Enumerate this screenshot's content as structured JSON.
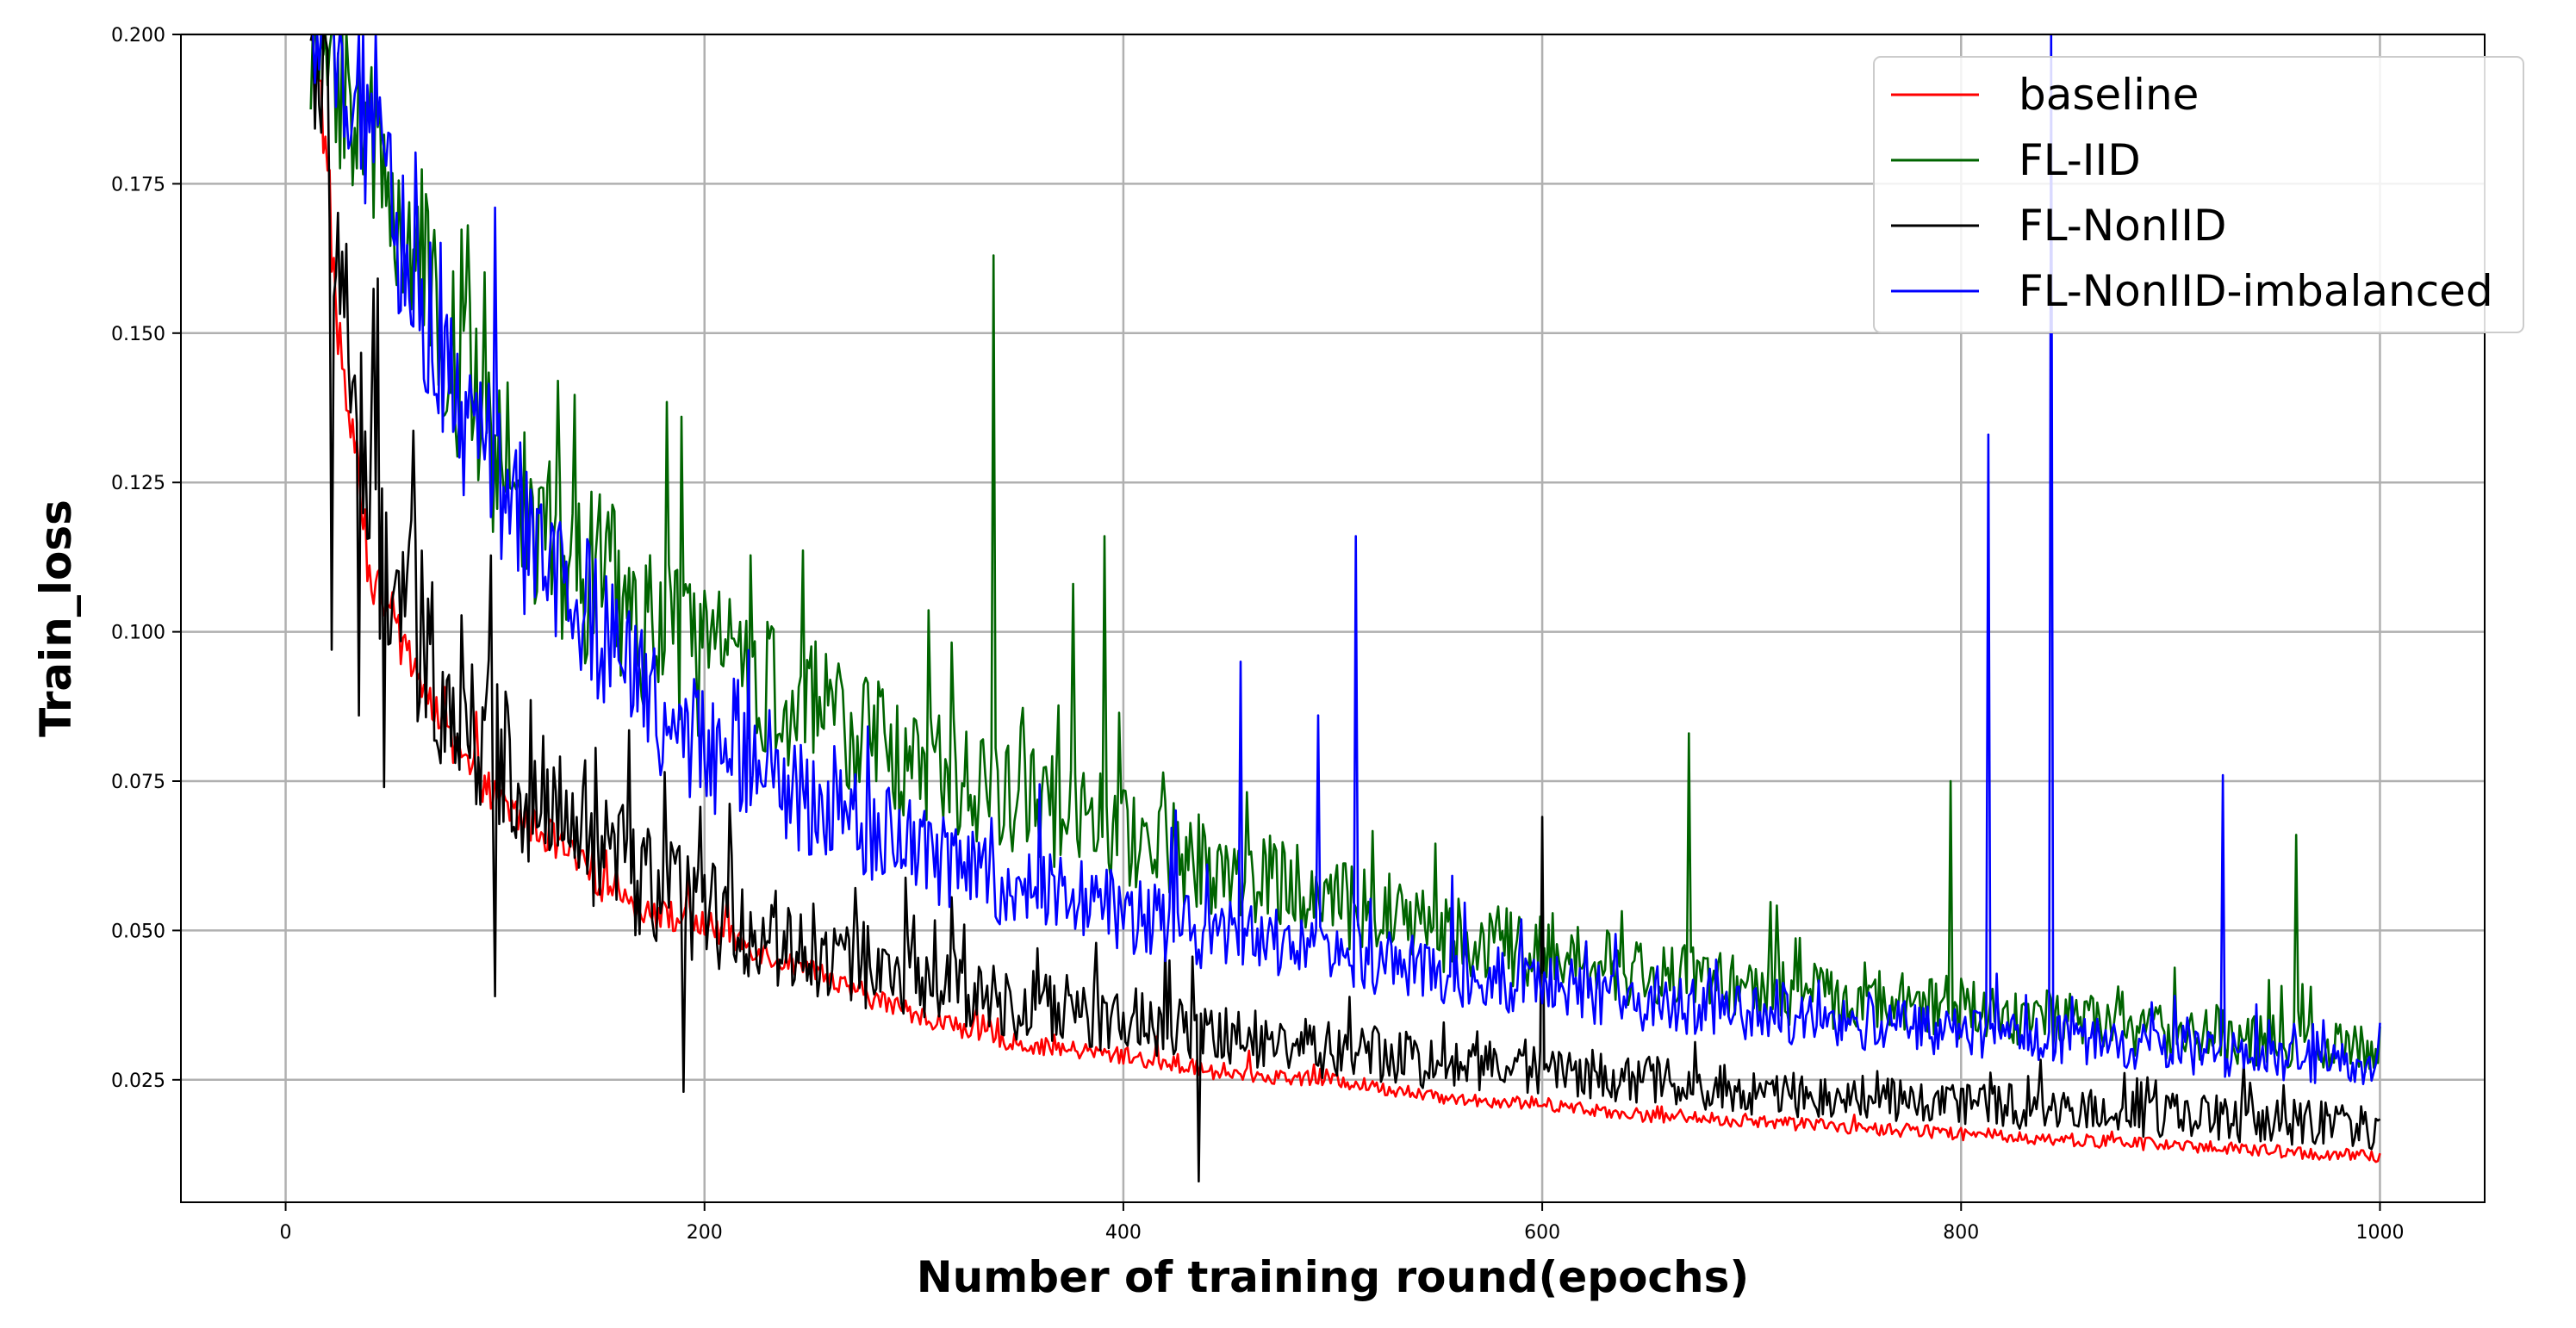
{
  "chart_data": {
    "type": "line",
    "title": "",
    "xlabel": "Number of training round(epochs)",
    "ylabel": "Train_loss",
    "xlim": [
      -50,
      1050
    ],
    "ylim": [
      0.0045,
      0.2
    ],
    "xticks": [
      0,
      200,
      400,
      600,
      800,
      1000
    ],
    "xtick_labels": [
      "0",
      "200",
      "400",
      "600",
      "800",
      "1000"
    ],
    "yticks": [
      0.025,
      0.05,
      0.075,
      0.1,
      0.125,
      0.15,
      0.175,
      0.2
    ],
    "ytick_labels": [
      "0.025",
      "0.050",
      "0.075",
      "0.100",
      "0.125",
      "0.150",
      "0.175",
      "0.200"
    ],
    "grid": true,
    "legend_position": "top-right",
    "x": [
      0,
      1000
    ],
    "series": [
      {
        "name": "baseline",
        "color": "#ff0000",
        "trend": [
          [
            15,
            0.2
          ],
          [
            20,
            0.175
          ],
          [
            25,
            0.15
          ],
          [
            40,
            0.11
          ],
          [
            60,
            0.095
          ],
          [
            80,
            0.08
          ],
          [
            100,
            0.072
          ],
          [
            125,
            0.066
          ],
          [
            150,
            0.058
          ],
          [
            175,
            0.053
          ],
          [
            200,
            0.051
          ],
          [
            250,
            0.043
          ],
          [
            300,
            0.036
          ],
          [
            350,
            0.031
          ],
          [
            400,
            0.029
          ],
          [
            450,
            0.026
          ],
          [
            500,
            0.025
          ],
          [
            550,
            0.022
          ],
          [
            600,
            0.021
          ],
          [
            650,
            0.019
          ],
          [
            700,
            0.018
          ],
          [
            800,
            0.016
          ],
          [
            900,
            0.014
          ],
          [
            1000,
            0.012
          ]
        ],
        "noise": 0.0025,
        "spikes": []
      },
      {
        "name": "FL-IID",
        "color": "#006400",
        "trend": [
          [
            15,
            0.2
          ],
          [
            30,
            0.19
          ],
          [
            50,
            0.175
          ],
          [
            75,
            0.15
          ],
          [
            100,
            0.13
          ],
          [
            125,
            0.115
          ],
          [
            150,
            0.108
          ],
          [
            175,
            0.1
          ],
          [
            200,
            0.095
          ],
          [
            250,
            0.087
          ],
          [
            300,
            0.078
          ],
          [
            350,
            0.072
          ],
          [
            400,
            0.066
          ],
          [
            450,
            0.06
          ],
          [
            500,
            0.055
          ],
          [
            550,
            0.05
          ],
          [
            600,
            0.046
          ],
          [
            650,
            0.043
          ],
          [
            700,
            0.04
          ],
          [
            800,
            0.037
          ],
          [
            900,
            0.033
          ],
          [
            1000,
            0.03
          ]
        ],
        "noise": 0.007,
        "spikes": [
          [
            189,
            0.136
          ],
          [
            338,
            0.163
          ],
          [
            376,
            0.108
          ],
          [
            391,
            0.116
          ],
          [
            670,
            0.083
          ],
          [
            795,
            0.075
          ],
          [
            960,
            0.066
          ]
        ]
      },
      {
        "name": "FL-NonIID",
        "color": "#000000",
        "trend": [
          [
            15,
            0.2
          ],
          [
            20,
            0.18
          ],
          [
            30,
            0.15
          ],
          [
            40,
            0.12
          ],
          [
            60,
            0.1
          ],
          [
            80,
            0.09
          ],
          [
            100,
            0.08
          ],
          [
            125,
            0.07
          ],
          [
            150,
            0.063
          ],
          [
            175,
            0.057
          ],
          [
            200,
            0.053
          ],
          [
            250,
            0.047
          ],
          [
            300,
            0.042
          ],
          [
            350,
            0.038
          ],
          [
            400,
            0.035
          ],
          [
            450,
            0.032
          ],
          [
            500,
            0.03
          ],
          [
            550,
            0.028
          ],
          [
            600,
            0.027
          ],
          [
            650,
            0.025
          ],
          [
            700,
            0.023
          ],
          [
            800,
            0.021
          ],
          [
            900,
            0.019
          ],
          [
            1000,
            0.017
          ]
        ],
        "noise": 0.0085,
        "spikes": [
          [
            22,
            0.097
          ],
          [
            35,
            0.086
          ],
          [
            47,
            0.074
          ],
          [
            100,
            0.039
          ],
          [
            190,
            0.023
          ],
          [
            436,
            0.008
          ],
          [
            600,
            0.069
          ]
        ]
      },
      {
        "name": "FL-NonIID-imbalanced",
        "color": "#0000ff",
        "trend": [
          [
            15,
            0.2
          ],
          [
            30,
            0.195
          ],
          [
            50,
            0.17
          ],
          [
            75,
            0.145
          ],
          [
            100,
            0.125
          ],
          [
            125,
            0.11
          ],
          [
            150,
            0.1
          ],
          [
            175,
            0.088
          ],
          [
            200,
            0.08
          ],
          [
            250,
            0.072
          ],
          [
            300,
            0.063
          ],
          [
            350,
            0.057
          ],
          [
            400,
            0.053
          ],
          [
            450,
            0.049
          ],
          [
            500,
            0.046
          ],
          [
            550,
            0.043
          ],
          [
            600,
            0.041
          ],
          [
            650,
            0.038
          ],
          [
            700,
            0.036
          ],
          [
            800,
            0.033
          ],
          [
            900,
            0.03
          ],
          [
            1000,
            0.027
          ]
        ],
        "noise": 0.0065,
        "spikes": [
          [
            100,
            0.171
          ],
          [
            456,
            0.095
          ],
          [
            493,
            0.086
          ],
          [
            511,
            0.116
          ],
          [
            813,
            0.133
          ],
          [
            843,
            0.2
          ],
          [
            925,
            0.076
          ]
        ]
      }
    ]
  }
}
